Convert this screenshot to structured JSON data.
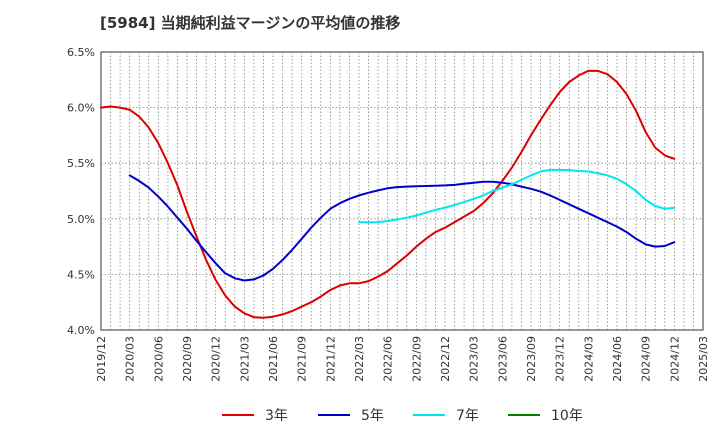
{
  "chart_data": {
    "type": "line",
    "title": "[5984]  当期純利益マージンの平均値の推移",
    "xlabel": "",
    "ylabel": "",
    "x_ticks": [
      "2019/12",
      "2020/03",
      "2020/06",
      "2020/09",
      "2020/12",
      "2021/03",
      "2021/06",
      "2021/09",
      "2021/12",
      "2022/03",
      "2022/06",
      "2022/09",
      "2022/12",
      "2023/03",
      "2023/06",
      "2023/09",
      "2023/12",
      "2024/03",
      "2024/06",
      "2024/09",
      "2024/12",
      "2025/03"
    ],
    "y_ticks": [
      "4.0%",
      "4.5%",
      "5.0%",
      "5.5%",
      "6.0%",
      "6.5%"
    ],
    "ylim": [
      4.0,
      6.5
    ],
    "grid": true,
    "grid_style": "dotted",
    "legend_position": "bottom",
    "series": [
      {
        "name": "3年",
        "color": "#dd0000",
        "x": [
          "2019/12",
          "2020/01",
          "2020/02",
          "2020/03",
          "2020/04",
          "2020/05",
          "2020/06",
          "2020/07",
          "2020/08",
          "2020/09",
          "2020/10",
          "2020/11",
          "2020/12",
          "2021/01",
          "2021/02",
          "2021/03",
          "2021/04",
          "2021/05",
          "2021/06",
          "2021/07",
          "2021/08",
          "2021/09",
          "2021/10",
          "2021/11",
          "2021/12",
          "2022/01",
          "2022/02",
          "2022/03",
          "2022/04",
          "2022/05",
          "2022/06",
          "2022/07",
          "2022/08",
          "2022/09",
          "2022/10",
          "2022/11",
          "2022/12",
          "2023/01",
          "2023/02",
          "2023/03",
          "2023/04",
          "2023/05",
          "2023/06",
          "2023/07",
          "2023/08",
          "2023/09",
          "2023/10",
          "2023/11",
          "2023/12",
          "2024/01",
          "2024/02",
          "2024/03",
          "2024/04",
          "2024/05",
          "2024/06",
          "2024/07",
          "2024/08",
          "2024/09",
          "2024/10",
          "2024/11",
          "2024/12"
        ],
        "values": [
          6.0,
          6.01,
          6.0,
          5.98,
          5.92,
          5.82,
          5.68,
          5.5,
          5.3,
          5.06,
          4.84,
          4.63,
          4.45,
          4.31,
          4.21,
          4.15,
          4.115,
          4.11,
          4.12,
          4.14,
          4.17,
          4.21,
          4.25,
          4.3,
          4.36,
          4.4,
          4.42,
          4.42,
          4.44,
          4.48,
          4.53,
          4.6,
          4.67,
          4.75,
          4.82,
          4.88,
          4.92,
          4.97,
          5.02,
          5.07,
          5.14,
          5.23,
          5.34,
          5.46,
          5.6,
          5.75,
          5.89,
          6.02,
          6.14,
          6.23,
          6.29,
          6.33,
          6.33,
          6.3,
          6.23,
          6.12,
          5.97,
          5.78,
          5.64,
          5.57,
          5.54
        ]
      },
      {
        "name": "5年",
        "color": "#0000cc",
        "x": [
          "2020/03",
          "2020/04",
          "2020/05",
          "2020/06",
          "2020/07",
          "2020/08",
          "2020/09",
          "2020/10",
          "2020/11",
          "2020/12",
          "2021/01",
          "2021/02",
          "2021/03",
          "2021/04",
          "2021/05",
          "2021/06",
          "2021/07",
          "2021/08",
          "2021/09",
          "2021/10",
          "2021/11",
          "2021/12",
          "2022/01",
          "2022/02",
          "2022/03",
          "2022/04",
          "2022/05",
          "2022/06",
          "2022/07",
          "2022/08",
          "2022/09",
          "2022/10",
          "2022/11",
          "2022/12",
          "2023/01",
          "2023/02",
          "2023/03",
          "2023/04",
          "2023/05",
          "2023/06",
          "2023/07",
          "2023/08",
          "2023/09",
          "2023/10",
          "2023/11",
          "2023/12",
          "2024/01",
          "2024/02",
          "2024/03",
          "2024/04",
          "2024/05",
          "2024/06",
          "2024/07",
          "2024/08",
          "2024/09",
          "2024/10",
          "2024/11",
          "2024/12"
        ],
        "values": [
          5.39,
          5.34,
          5.28,
          5.2,
          5.11,
          5.01,
          4.91,
          4.8,
          4.7,
          4.6,
          4.51,
          4.465,
          4.445,
          4.455,
          4.49,
          4.55,
          4.63,
          4.72,
          4.82,
          4.92,
          5.01,
          5.09,
          5.14,
          5.18,
          5.21,
          5.235,
          5.255,
          5.275,
          5.285,
          5.29,
          5.292,
          5.295,
          5.298,
          5.3,
          5.305,
          5.315,
          5.325,
          5.333,
          5.333,
          5.325,
          5.31,
          5.29,
          5.27,
          5.245,
          5.21,
          5.17,
          5.13,
          5.09,
          5.05,
          5.01,
          4.97,
          4.93,
          4.88,
          4.82,
          4.77,
          4.75,
          4.755,
          4.79
        ]
      },
      {
        "name": "7年",
        "color": "#00e5ee",
        "x": [
          "2022/03",
          "2022/04",
          "2022/05",
          "2022/06",
          "2022/07",
          "2022/08",
          "2022/09",
          "2022/10",
          "2022/11",
          "2022/12",
          "2023/01",
          "2023/02",
          "2023/03",
          "2023/04",
          "2023/05",
          "2023/06",
          "2023/07",
          "2023/08",
          "2023/09",
          "2023/10",
          "2023/11",
          "2023/12",
          "2024/01",
          "2024/02",
          "2024/03",
          "2024/04",
          "2024/05",
          "2024/06",
          "2024/07",
          "2024/08",
          "2024/09",
          "2024/10",
          "2024/11",
          "2024/12"
        ],
        "values": [
          4.97,
          4.968,
          4.97,
          4.98,
          4.995,
          5.01,
          5.03,
          5.055,
          5.08,
          5.1,
          5.125,
          5.15,
          5.18,
          5.21,
          5.25,
          5.28,
          5.31,
          5.35,
          5.39,
          5.425,
          5.44,
          5.44,
          5.438,
          5.43,
          5.425,
          5.41,
          5.39,
          5.36,
          5.31,
          5.25,
          5.17,
          5.115,
          5.09,
          5.1
        ]
      },
      {
        "name": "10年",
        "color": "#008000",
        "x": [],
        "values": []
      }
    ]
  }
}
